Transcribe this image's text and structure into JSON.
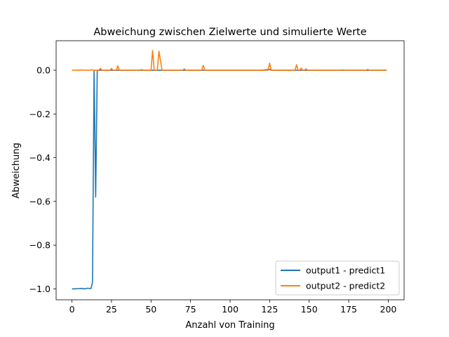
{
  "chart_data": {
    "type": "line",
    "title": "Abweichung zwischen Zielwerte und simulierte Werte",
    "xlabel": "Anzahl von Training",
    "ylabel": "Abweichung",
    "xlim": [
      -10,
      210
    ],
    "ylim": [
      -1.05,
      0.135
    ],
    "xticks": [
      0,
      25,
      50,
      75,
      100,
      125,
      150,
      175,
      200
    ],
    "yticks": [
      -1.0,
      -0.8,
      -0.6,
      -0.4,
      -0.2,
      0.0
    ],
    "ytick_labels": [
      "−1.0",
      "−0.8",
      "−0.6",
      "−0.4",
      "−0.2",
      "0.0"
    ],
    "grid": false,
    "legend_position": "lower-right",
    "series": [
      {
        "name": "output1 - predict1",
        "color": "#1f77b4",
        "points": [
          [
            0,
            -1.0
          ],
          [
            2,
            -1.0
          ],
          [
            4,
            -0.999
          ],
          [
            6,
            -0.998
          ],
          [
            8,
            -1.0
          ],
          [
            10,
            -0.997
          ],
          [
            12,
            -0.999
          ],
          [
            13,
            -0.97
          ],
          [
            14,
            0.0
          ],
          [
            15,
            -0.58
          ],
          [
            16,
            0.0
          ],
          [
            18,
            0.0
          ],
          [
            20,
            0.0
          ],
          [
            40,
            0.0
          ],
          [
            60,
            0.0
          ],
          [
            80,
            0.0
          ],
          [
            100,
            0.0
          ],
          [
            120,
            0.0
          ],
          [
            125,
            0.004
          ],
          [
            126,
            0.0
          ],
          [
            140,
            0.0
          ],
          [
            160,
            0.0
          ],
          [
            180,
            0.0
          ],
          [
            199,
            0.0
          ]
        ]
      },
      {
        "name": "output2 - predict2",
        "color": "#ff7f0e",
        "points": [
          [
            0,
            0.0
          ],
          [
            5,
            0.001
          ],
          [
            10,
            0.0
          ],
          [
            12,
            0.002
          ],
          [
            14,
            0.0
          ],
          [
            17,
            0.0
          ],
          [
            18,
            0.008
          ],
          [
            19,
            0.0
          ],
          [
            24,
            0.0
          ],
          [
            25,
            0.008
          ],
          [
            26,
            0.0
          ],
          [
            28,
            0.0
          ],
          [
            29,
            0.02
          ],
          [
            30,
            0.0
          ],
          [
            43,
            0.0
          ],
          [
            44,
            0.003
          ],
          [
            45,
            0.0
          ],
          [
            50,
            0.0
          ],
          [
            51,
            0.09
          ],
          [
            52,
            0.0
          ],
          [
            54,
            0.0
          ],
          [
            55,
            0.087
          ],
          [
            57,
            0.0
          ],
          [
            70,
            0.0
          ],
          [
            71,
            0.006
          ],
          [
            72,
            0.0
          ],
          [
            82,
            0.0
          ],
          [
            83,
            0.022
          ],
          [
            84,
            0.0
          ],
          [
            124,
            0.0
          ],
          [
            125,
            0.032
          ],
          [
            126,
            0.0
          ],
          [
            141,
            0.0
          ],
          [
            142,
            0.025
          ],
          [
            143,
            0.0
          ],
          [
            144,
            0.0
          ],
          [
            145,
            0.01
          ],
          [
            146,
            0.0
          ],
          [
            147,
            0.0
          ],
          [
            148,
            0.006
          ],
          [
            149,
            0.0
          ],
          [
            170,
            0.0
          ],
          [
            171,
            0.002
          ],
          [
            172,
            0.0
          ],
          [
            186,
            0.0
          ],
          [
            187,
            0.004
          ],
          [
            188,
            0.0
          ],
          [
            199,
            0.0
          ]
        ]
      }
    ]
  }
}
